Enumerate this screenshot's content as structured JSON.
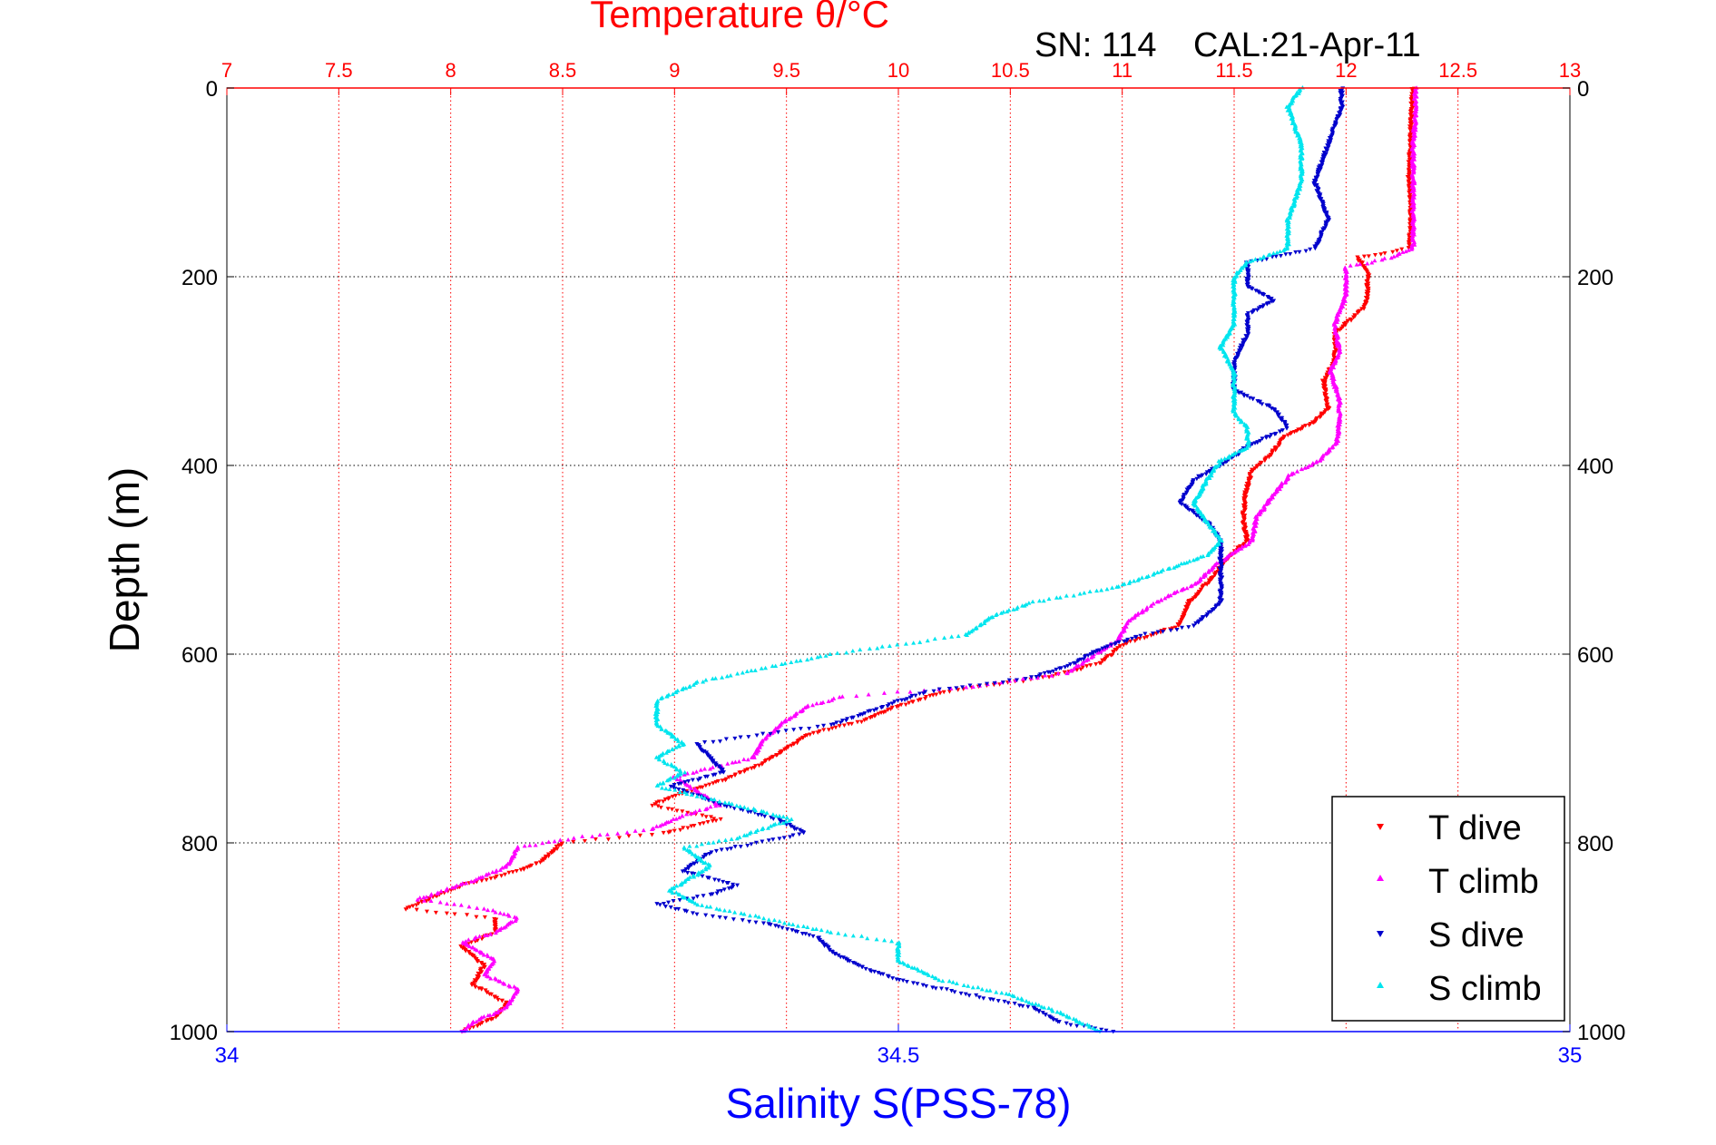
{
  "figure": {
    "top_title": "Temperature θ/°C",
    "sn_label": "SN: 114",
    "cal_label": "CAL:21-Apr-11",
    "bottom_title": "Salinity S(PSS-78)",
    "y_title": "Depth (m)"
  },
  "chart_data": {
    "type": "scatter",
    "title": "Temperature θ/°C",
    "xlabel_top": "Temperature θ/°C",
    "xlabel_bottom": "Salinity S(PSS-78)",
    "ylabel": "Depth (m)",
    "temperature_axis": {
      "range": [
        7,
        13
      ],
      "ticks": [
        7,
        7.5,
        8,
        8.5,
        9,
        9.5,
        10,
        10.5,
        11,
        11.5,
        12,
        12.5,
        13
      ],
      "tick_labels": [
        "7",
        "7.5",
        "8",
        "8.5",
        "9",
        "9.5",
        "10",
        "10.5",
        "11",
        "11.5",
        "12",
        "12.5",
        "13"
      ]
    },
    "salinity_axis": {
      "range": [
        34,
        35
      ],
      "ticks": [
        34,
        34.5,
        35
      ],
      "tick_labels": [
        "34",
        "34.5",
        "35"
      ]
    },
    "depth_axis": {
      "range": [
        0,
        1000
      ],
      "reversed": true,
      "ticks": [
        0,
        200,
        400,
        600,
        800,
        1000
      ],
      "tick_labels": [
        "0",
        "200",
        "400",
        "600",
        "800",
        "1000"
      ]
    },
    "grid": true,
    "legend_position": "bottom-right",
    "colors": {
      "t_dive": "#ff0000",
      "t_climb": "#ff00ff",
      "s_dive": "#0000cc",
      "s_climb": "#00e5ee",
      "temp_axis": "#ff0000",
      "sal_axis": "#0000ff"
    },
    "series": [
      {
        "name": "T dive",
        "axis": "temperature",
        "color": "#ff0000",
        "marker": "down-triangle",
        "points": [
          [
            12.3,
            0
          ],
          [
            12.29,
            30
          ],
          [
            12.29,
            60
          ],
          [
            12.28,
            90
          ],
          [
            12.29,
            120
          ],
          [
            12.29,
            150
          ],
          [
            12.28,
            170
          ],
          [
            12.05,
            180
          ],
          [
            12.1,
            195
          ],
          [
            12.09,
            230
          ],
          [
            11.95,
            260
          ],
          [
            11.95,
            290
          ],
          [
            11.9,
            310
          ],
          [
            11.92,
            340
          ],
          [
            11.85,
            355
          ],
          [
            11.72,
            370
          ],
          [
            11.66,
            390
          ],
          [
            11.58,
            405
          ],
          [
            11.55,
            430
          ],
          [
            11.54,
            460
          ],
          [
            11.56,
            480
          ],
          [
            11.46,
            500
          ],
          [
            11.4,
            520
          ],
          [
            11.3,
            545
          ],
          [
            11.25,
            570
          ],
          [
            11.0,
            590
          ],
          [
            10.9,
            610
          ],
          [
            10.65,
            625
          ],
          [
            10.2,
            640
          ],
          [
            10.0,
            655
          ],
          [
            9.85,
            670
          ],
          [
            9.6,
            685
          ],
          [
            9.5,
            700
          ],
          [
            9.4,
            715
          ],
          [
            9.2,
            735
          ],
          [
            9.0,
            750
          ],
          [
            8.9,
            760
          ],
          [
            9.1,
            770
          ],
          [
            9.2,
            775
          ],
          [
            8.95,
            790
          ],
          [
            8.5,
            800
          ],
          [
            8.4,
            820
          ],
          [
            8.3,
            830
          ],
          [
            8.05,
            845
          ],
          [
            7.9,
            860
          ],
          [
            7.8,
            870
          ],
          [
            8.2,
            880
          ],
          [
            8.2,
            895
          ],
          [
            8.05,
            910
          ],
          [
            8.15,
            930
          ],
          [
            8.1,
            950
          ],
          [
            8.25,
            970
          ],
          [
            8.2,
            985
          ],
          [
            8.05,
            1000
          ]
        ]
      },
      {
        "name": "T climb",
        "axis": "temperature",
        "color": "#ff00ff",
        "marker": "up-triangle",
        "points": [
          [
            12.31,
            0
          ],
          [
            12.31,
            30
          ],
          [
            12.3,
            60
          ],
          [
            12.3,
            90
          ],
          [
            12.3,
            120
          ],
          [
            12.3,
            150
          ],
          [
            12.3,
            170
          ],
          [
            12.2,
            180
          ],
          [
            12.0,
            190
          ],
          [
            12.0,
            220
          ],
          [
            11.95,
            250
          ],
          [
            11.97,
            280
          ],
          [
            11.93,
            300
          ],
          [
            11.97,
            330
          ],
          [
            11.97,
            350
          ],
          [
            11.96,
            375
          ],
          [
            11.88,
            395
          ],
          [
            11.75,
            410
          ],
          [
            11.68,
            430
          ],
          [
            11.6,
            455
          ],
          [
            11.58,
            480
          ],
          [
            11.42,
            505
          ],
          [
            11.33,
            525
          ],
          [
            11.15,
            545
          ],
          [
            11.03,
            565
          ],
          [
            10.98,
            585
          ],
          [
            10.85,
            605
          ],
          [
            10.75,
            620
          ],
          [
            10.3,
            635
          ],
          [
            9.75,
            645
          ],
          [
            9.6,
            655
          ],
          [
            9.5,
            670
          ],
          [
            9.4,
            690
          ],
          [
            9.35,
            710
          ],
          [
            9.0,
            730
          ],
          [
            9.1,
            745
          ],
          [
            9.2,
            760
          ],
          [
            9.05,
            770
          ],
          [
            8.9,
            785
          ],
          [
            8.55,
            795
          ],
          [
            8.3,
            805
          ],
          [
            8.25,
            825
          ],
          [
            8.1,
            840
          ],
          [
            7.85,
            860
          ],
          [
            8.15,
            870
          ],
          [
            8.3,
            880
          ],
          [
            8.2,
            895
          ],
          [
            8.05,
            905
          ],
          [
            8.2,
            925
          ],
          [
            8.15,
            940
          ],
          [
            8.3,
            955
          ],
          [
            8.25,
            975
          ],
          [
            8.1,
            990
          ],
          [
            8.05,
            1000
          ]
        ]
      },
      {
        "name": "S dive",
        "axis": "salinity",
        "color": "#0000cc",
        "marker": "down-triangle",
        "points": [
          [
            34.83,
            0
          ],
          [
            34.83,
            20
          ],
          [
            34.82,
            60
          ],
          [
            34.81,
            100
          ],
          [
            34.82,
            140
          ],
          [
            34.81,
            170
          ],
          [
            34.76,
            185
          ],
          [
            34.76,
            210
          ],
          [
            34.78,
            225
          ],
          [
            34.76,
            240
          ],
          [
            34.76,
            260
          ],
          [
            34.75,
            290
          ],
          [
            34.75,
            320
          ],
          [
            34.78,
            340
          ],
          [
            34.79,
            360
          ],
          [
            34.76,
            380
          ],
          [
            34.74,
            400
          ],
          [
            34.72,
            415
          ],
          [
            34.71,
            440
          ],
          [
            34.73,
            460
          ],
          [
            34.74,
            480
          ],
          [
            34.74,
            500
          ],
          [
            34.74,
            520
          ],
          [
            34.74,
            545
          ],
          [
            34.72,
            570
          ],
          [
            34.68,
            580
          ],
          [
            34.65,
            595
          ],
          [
            34.63,
            610
          ],
          [
            34.6,
            625
          ],
          [
            34.52,
            640
          ],
          [
            34.48,
            660
          ],
          [
            34.45,
            675
          ],
          [
            34.4,
            685
          ],
          [
            34.35,
            695
          ],
          [
            34.36,
            710
          ],
          [
            34.37,
            725
          ],
          [
            34.33,
            740
          ],
          [
            34.37,
            760
          ],
          [
            34.41,
            775
          ],
          [
            34.43,
            790
          ],
          [
            34.36,
            810
          ],
          [
            34.34,
            830
          ],
          [
            34.38,
            845
          ],
          [
            34.36,
            855
          ],
          [
            34.32,
            865
          ],
          [
            34.35,
            875
          ],
          [
            34.4,
            885
          ],
          [
            34.44,
            900
          ],
          [
            34.45,
            915
          ],
          [
            34.47,
            930
          ],
          [
            34.5,
            945
          ],
          [
            34.55,
            960
          ],
          [
            34.6,
            975
          ],
          [
            34.62,
            990
          ],
          [
            34.66,
            1000
          ]
        ]
      },
      {
        "name": "S climb",
        "axis": "salinity",
        "color": "#00e5ee",
        "marker": "up-triangle",
        "points": [
          [
            34.8,
            0
          ],
          [
            34.79,
            20
          ],
          [
            34.8,
            60
          ],
          [
            34.8,
            100
          ],
          [
            34.79,
            140
          ],
          [
            34.79,
            170
          ],
          [
            34.76,
            185
          ],
          [
            34.75,
            200
          ],
          [
            34.75,
            225
          ],
          [
            34.75,
            250
          ],
          [
            34.74,
            275
          ],
          [
            34.75,
            300
          ],
          [
            34.75,
            320
          ],
          [
            34.75,
            345
          ],
          [
            34.76,
            360
          ],
          [
            34.76,
            380
          ],
          [
            34.74,
            395
          ],
          [
            34.73,
            415
          ],
          [
            34.72,
            440
          ],
          [
            34.73,
            460
          ],
          [
            34.74,
            480
          ],
          [
            34.73,
            495
          ],
          [
            34.7,
            510
          ],
          [
            34.66,
            530
          ],
          [
            34.6,
            545
          ],
          [
            34.57,
            560
          ],
          [
            34.55,
            580
          ],
          [
            34.45,
            600
          ],
          [
            34.35,
            630
          ],
          [
            34.32,
            650
          ],
          [
            34.32,
            675
          ],
          [
            34.34,
            695
          ],
          [
            34.32,
            710
          ],
          [
            34.34,
            725
          ],
          [
            34.32,
            740
          ],
          [
            34.38,
            760
          ],
          [
            34.42,
            775
          ],
          [
            34.38,
            795
          ],
          [
            34.34,
            805
          ],
          [
            34.36,
            825
          ],
          [
            34.33,
            850
          ],
          [
            34.35,
            865
          ],
          [
            34.4,
            880
          ],
          [
            34.45,
            895
          ],
          [
            34.5,
            905
          ],
          [
            34.5,
            925
          ],
          [
            34.53,
            945
          ],
          [
            34.58,
            960
          ],
          [
            34.62,
            980
          ],
          [
            34.65,
            1000
          ]
        ]
      }
    ]
  }
}
